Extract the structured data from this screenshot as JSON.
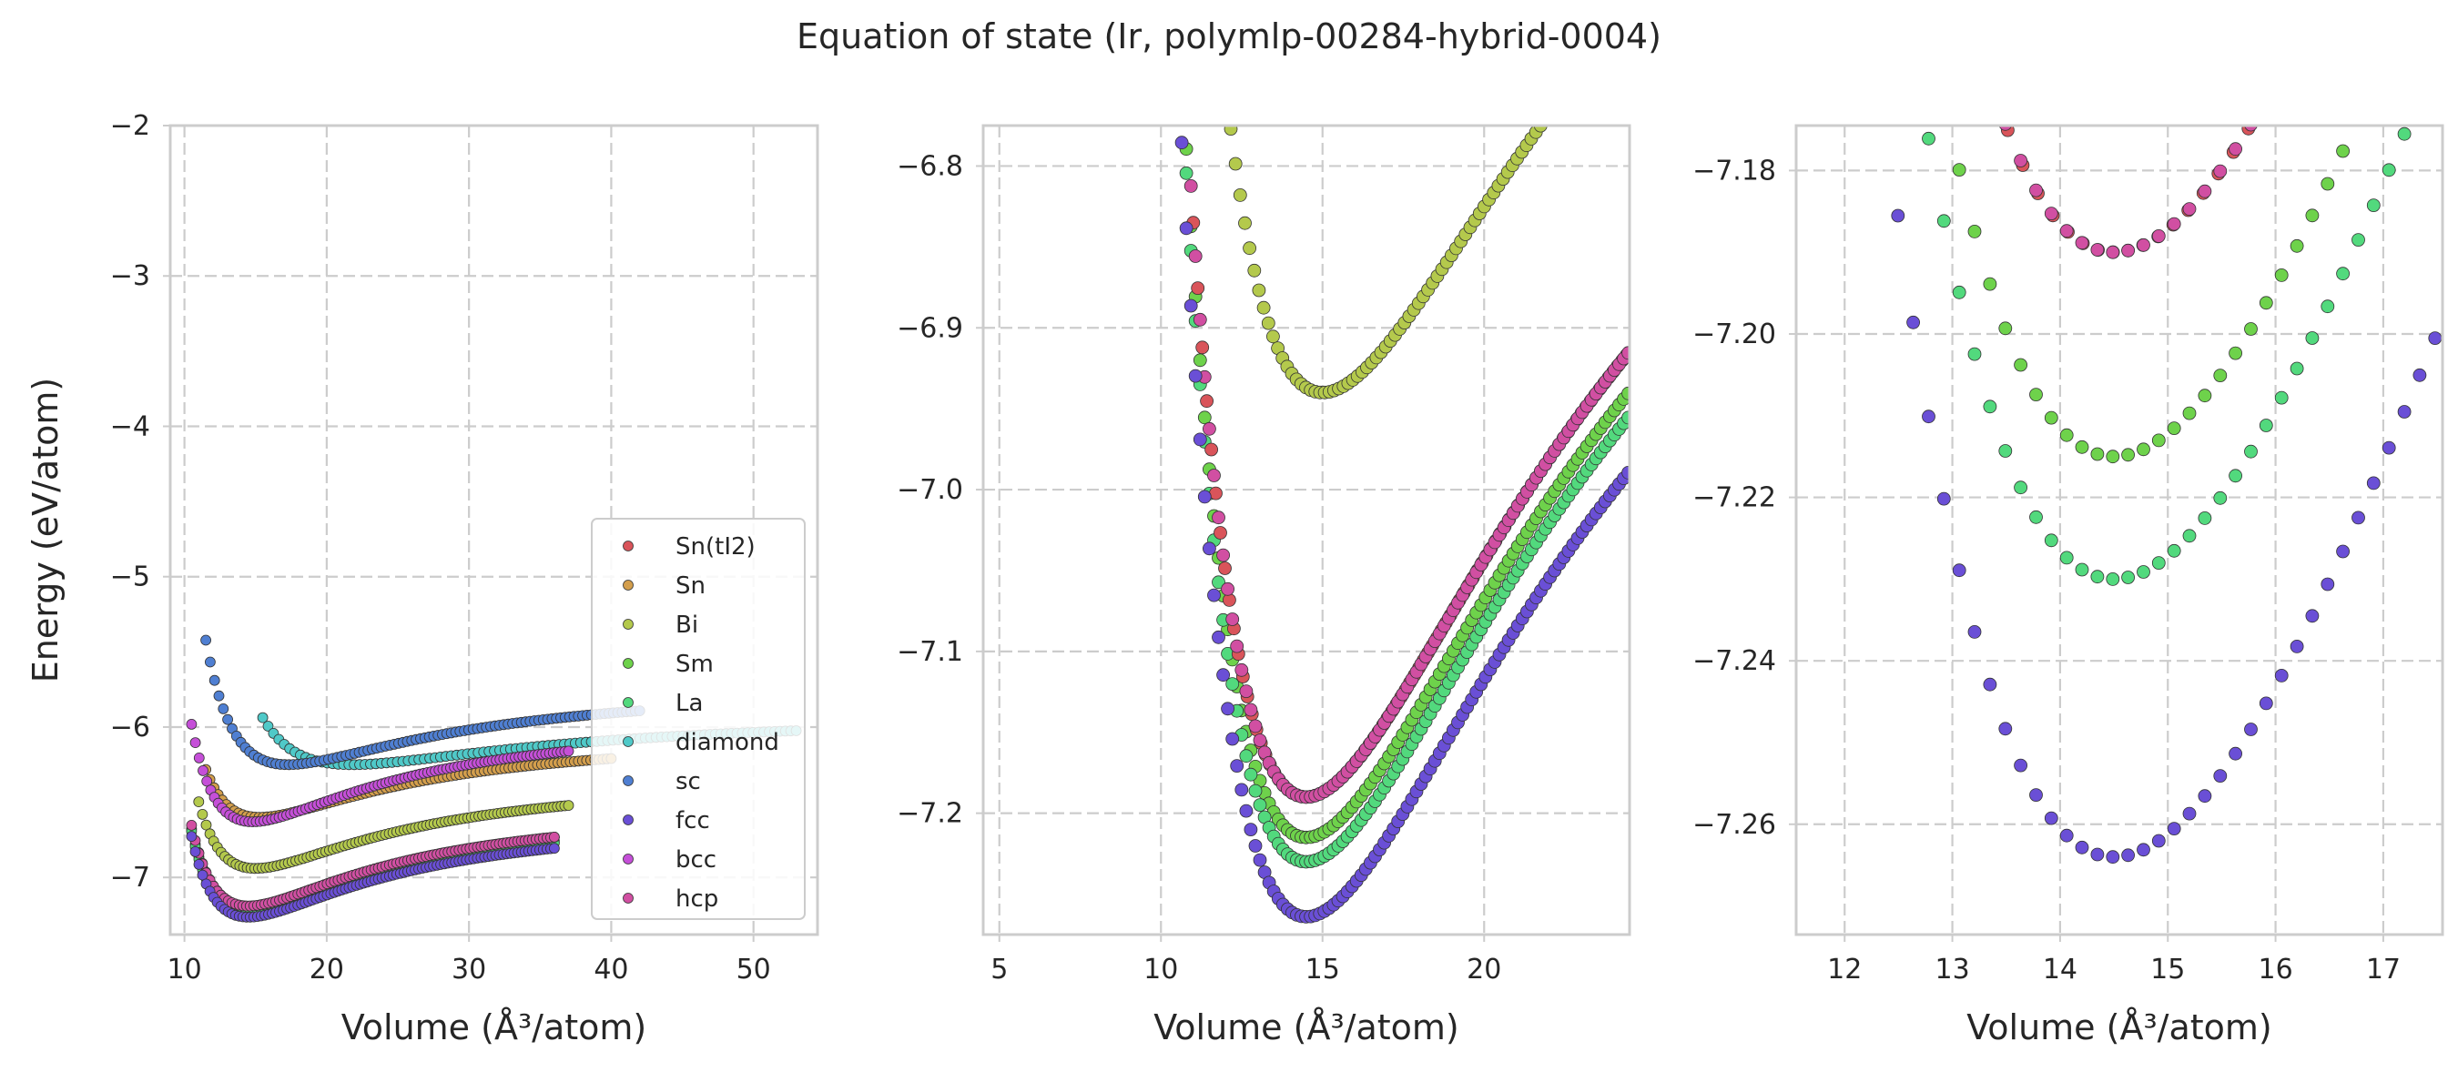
{
  "chart_data": {
    "type": "scatter",
    "title": "Equation of state (Ir, polymlp-00284-hybrid-0004)",
    "legend_location": "lower-right (left panel)",
    "series": [
      {
        "name": "Sn(tI2)",
        "color": "#d9545a",
        "v0": 14.5,
        "e0": -7.19,
        "b": 0.045,
        "vmin": 11.0,
        "vmax": 36.0
      },
      {
        "name": "Sn",
        "color": "#d39e4c",
        "v0": 15.3,
        "e0": -6.6,
        "b": 0.035,
        "vmin": 11.5,
        "vmax": 40.0
      },
      {
        "name": "Bi",
        "color": "#b4c94c",
        "v0": 15.0,
        "e0": -6.94,
        "b": 0.04,
        "vmin": 11.0,
        "vmax": 37.0
      },
      {
        "name": "Sm",
        "color": "#6ed24b",
        "v0": 14.5,
        "e0": -7.215,
        "b": 0.045,
        "vmin": 10.5,
        "vmax": 36.0
      },
      {
        "name": "La",
        "color": "#52d97d",
        "v0": 14.5,
        "e0": -7.23,
        "b": 0.045,
        "vmin": 10.5,
        "vmax": 36.0
      },
      {
        "name": "diamond",
        "color": "#4fc9c8",
        "v0": 21.8,
        "e0": -6.25,
        "b": 0.015,
        "vmin": 15.5,
        "vmax": 53.0
      },
      {
        "name": "sc",
        "color": "#4f7fd2",
        "v0": 17.3,
        "e0": -6.25,
        "b": 0.03,
        "vmin": 11.5,
        "vmax": 42.0
      },
      {
        "name": "fcc",
        "color": "#6a4fd6",
        "v0": 14.5,
        "e0": -7.264,
        "b": 0.045,
        "vmin": 10.5,
        "vmax": 36.0
      },
      {
        "name": "bcc",
        "color": "#c54fd8",
        "v0": 14.8,
        "e0": -6.63,
        "b": 0.045,
        "vmin": 10.5,
        "vmax": 37.0
      },
      {
        "name": "hcp",
        "color": "#d14fa2",
        "v0": 14.5,
        "e0": -7.19,
        "b": 0.045,
        "vmin": 10.5,
        "vmax": 36.0
      }
    ],
    "panels": [
      {
        "xlabel": "Volume (Å³/atom)",
        "ylabel": "Energy (eV/atom)",
        "xlim": [
          9.0,
          54.5
        ],
        "ylim": [
          -7.38,
          -2.0
        ],
        "xticks": [
          10,
          20,
          30,
          40,
          50
        ],
        "yticks": [
          -7,
          -6,
          -5,
          -4,
          -3,
          -2
        ],
        "xtick_labels": [
          "10",
          "20",
          "30",
          "40",
          "50"
        ],
        "ytick_labels": [
          "−7",
          "−6",
          "−5",
          "−4",
          "−3",
          "−2"
        ],
        "npoints": 100
      },
      {
        "xlabel": "Volume (Å³/atom)",
        "ylabel": "",
        "xlim": [
          4.5,
          24.5
        ],
        "ylim": [
          -7.275,
          -6.775
        ],
        "xticks": [
          5,
          10,
          15,
          20
        ],
        "yticks": [
          -7.2,
          -7.1,
          -7.0,
          -6.9,
          -6.8
        ],
        "xtick_labels": [
          "5",
          "10",
          "15",
          "20"
        ],
        "ytick_labels": [
          "−7.2",
          "−7.1",
          "−7.0",
          "−6.9",
          "−6.8"
        ],
        "npoints": 180
      },
      {
        "xlabel": "Volume (Å³/atom)",
        "ylabel": "",
        "xlim": [
          11.55,
          17.55
        ],
        "ylim": [
          -7.2735,
          -7.1745
        ],
        "xticks": [
          12,
          13,
          14,
          15,
          16,
          17
        ],
        "yticks": [
          -7.26,
          -7.24,
          -7.22,
          -7.2,
          -7.18
        ],
        "xtick_labels": [
          "12",
          "13",
          "14",
          "15",
          "16",
          "17"
        ],
        "ytick_labels": [
          "−7.26",
          "−7.24",
          "−7.22",
          "−7.20",
          "−7.18"
        ],
        "npoints": 180
      }
    ]
  }
}
